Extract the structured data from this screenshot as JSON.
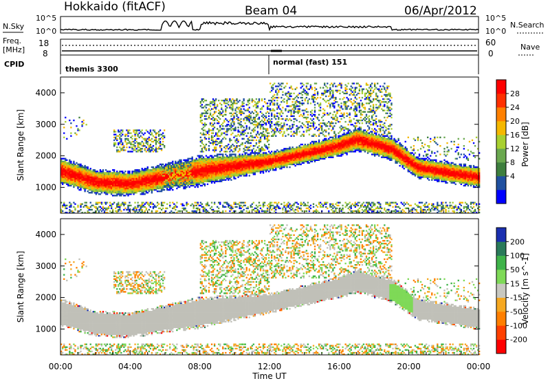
{
  "header": {
    "radar": "Hokkaido (fitACF)",
    "beam": "Beam 04",
    "date": "06/Apr/2012"
  },
  "top_panels": {
    "nsky_label": "N.Sky",
    "nsky_ticks": [
      "10^5",
      "10^0"
    ],
    "nsearch_label": "N.Search",
    "nsearch_ticks": [
      "10^5",
      "10^0"
    ],
    "freq_label_1": "Freq.",
    "freq_label_2": "[MHz]",
    "freq_ticks": [
      "18",
      "8"
    ],
    "nave_label": "Nave",
    "nave_ticks": [
      "60",
      "0"
    ],
    "cpid_label": "CPID",
    "cpid_segments": [
      "themis 3300",
      "normal (fast) 151"
    ]
  },
  "colors": {
    "power": [
      "#0000ff",
      "#2050a0",
      "#3e7f3e",
      "#6aa84f",
      "#a8d030",
      "#f5b800",
      "#ff8000",
      "#ff3000",
      "#ff0000"
    ],
    "velocity": [
      "#1a2fb0",
      "#2a7a5a",
      "#3fb34a",
      "#7ed957",
      "#c8c8c0",
      "#f6a821",
      "#ff7f00",
      "#ff4000",
      "#ff0000"
    ],
    "ground_scatter": "#c0c0b8"
  },
  "chart_data": [
    {
      "type": "heatmap",
      "panel": "power",
      "ylabel": "Slant Range [km]",
      "xlabel": "Time UT",
      "x_ticks": [
        "00:00",
        "04:00",
        "08:00",
        "12:00",
        "16:00",
        "20:00",
        "00:00"
      ],
      "xlim_hours": [
        0,
        24
      ],
      "ylim": [
        180,
        4500
      ],
      "y_ticks": [
        1000,
        2000,
        3000,
        4000
      ],
      "colorbar": {
        "label": "Power [dB]",
        "ticks": [
          4,
          8,
          12,
          16,
          20,
          24,
          28
        ]
      },
      "main_band": [
        {
          "t": 0,
          "center": 1500,
          "width": 700
        },
        {
          "t": 2,
          "center": 1150,
          "width": 650
        },
        {
          "t": 4,
          "center": 1100,
          "width": 650
        },
        {
          "t": 5.9,
          "center": 1300,
          "width": 700
        },
        {
          "t": 8,
          "center": 1500,
          "width": 800
        },
        {
          "t": 12,
          "center": 1800,
          "width": 500
        },
        {
          "t": 16,
          "center": 2300,
          "width": 550
        },
        {
          "t": 17,
          "center": 2500,
          "width": 600
        },
        {
          "t": 19,
          "center": 2200,
          "width": 600
        },
        {
          "t": 20.5,
          "center": 1600,
          "width": 550
        },
        {
          "t": 24,
          "center": 1300,
          "width": 550
        }
      ]
    },
    {
      "type": "heatmap",
      "panel": "velocity",
      "ylabel": "Slant Range [km]",
      "xlabel": "Time UT",
      "x_ticks": [
        "00:00",
        "04:00",
        "08:00",
        "12:00",
        "16:00",
        "20:00",
        "00:00"
      ],
      "xlim_hours": [
        0,
        24
      ],
      "ylim": [
        180,
        4500
      ],
      "y_ticks": [
        1000,
        2000,
        3000,
        4000
      ],
      "colorbar": {
        "label": "Velocity [m s^-1]",
        "ticks": [
          200,
          100,
          50,
          15,
          -15,
          -50,
          -100,
          -200
        ]
      }
    }
  ]
}
